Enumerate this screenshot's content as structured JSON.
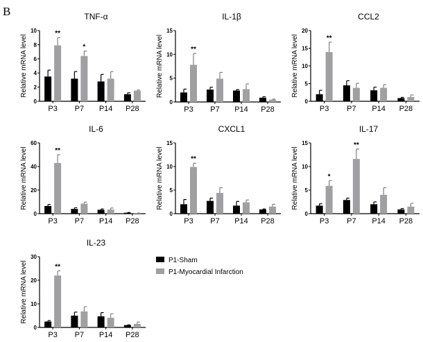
{
  "panel_label": "B",
  "legend": [
    {
      "name": "P1-Sham",
      "color": "#000000"
    },
    {
      "name": "P1-Myocardial Infarction",
      "color": "#a0a0a2"
    }
  ],
  "chart_data": [
    {
      "type": "bar",
      "title": "TNF-α",
      "ylabel": "Relative mRNA level",
      "xlabel": "",
      "categories": [
        "P3",
        "P7",
        "P14",
        "P28"
      ],
      "ylim": [
        0,
        10
      ],
      "yticks": [
        "0",
        "2",
        "4",
        "6",
        "8",
        "10"
      ],
      "series": [
        {
          "name": "P1-Sham",
          "values": [
            3.5,
            3.2,
            2.8,
            1.0
          ],
          "errors": [
            0.9,
            1.0,
            1.0,
            0.2
          ]
        },
        {
          "name": "P1-Myocardial Infarction",
          "values": [
            7.9,
            6.4,
            3.2,
            1.5
          ],
          "errors": [
            1.1,
            0.7,
            1.0,
            0.1
          ]
        }
      ],
      "significance": [
        "**",
        "*",
        "",
        ""
      ]
    },
    {
      "type": "bar",
      "title": "IL-1β",
      "ylabel": "Relative mRNA level",
      "xlabel": "",
      "categories": [
        "P3",
        "P7",
        "P14",
        "P28"
      ],
      "ylim": [
        0,
        15
      ],
      "yticks": [
        "0",
        "5",
        "10",
        "15"
      ],
      "series": [
        {
          "name": "P1-Sham",
          "values": [
            2.0,
            2.6,
            2.4,
            0.9
          ],
          "errors": [
            0.7,
            0.5,
            0.2,
            0.2
          ]
        },
        {
          "name": "P1-Myocardial Infarction",
          "values": [
            7.8,
            4.9,
            2.7,
            0.5
          ],
          "errors": [
            2.4,
            1.3,
            1.1,
            0.1
          ]
        }
      ],
      "significance": [
        "**",
        "",
        "",
        ""
      ]
    },
    {
      "type": "bar",
      "title": "CCL2",
      "ylabel": "Relative mRNA level",
      "xlabel": "",
      "categories": [
        "P3",
        "P7",
        "P14",
        "P28"
      ],
      "ylim": [
        0,
        20
      ],
      "yticks": [
        "0",
        "5",
        "10",
        "15",
        "20"
      ],
      "series": [
        {
          "name": "P1-Sham",
          "values": [
            2.0,
            4.5,
            3.1,
            0.9
          ],
          "errors": [
            1.1,
            1.3,
            0.9,
            0.2
          ]
        },
        {
          "name": "P1-Myocardial Infarction",
          "values": [
            13.9,
            3.8,
            3.8,
            1.2
          ],
          "errors": [
            2.8,
            1.3,
            0.9,
            0.6
          ]
        }
      ],
      "significance": [
        "**",
        "",
        "",
        ""
      ]
    },
    {
      "type": "bar",
      "title": "IL-6",
      "ylabel": "Relative mRNA level",
      "xlabel": "",
      "categories": [
        "P3",
        "P7",
        "P14",
        "P28"
      ],
      "ylim": [
        0,
        60
      ],
      "yticks": [
        "0",
        "20",
        "40",
        "60"
      ],
      "series": [
        {
          "name": "P1-Sham",
          "values": [
            6.5,
            4.0,
            3.3,
            0.8
          ],
          "errors": [
            1.3,
            1.0,
            0.7,
            0.2
          ]
        },
        {
          "name": "P1-Myocardial Infarction",
          "values": [
            43,
            8.5,
            3.5,
            0.4
          ],
          "errors": [
            7,
            1.3,
            1.3,
            0.2
          ]
        }
      ],
      "significance": [
        "**",
        "",
        "",
        ""
      ]
    },
    {
      "type": "bar",
      "title": "CXCL1",
      "ylabel": "Relative mRNA level",
      "xlabel": "",
      "categories": [
        "P3",
        "P7",
        "P14",
        "P28"
      ],
      "ylim": [
        0,
        15
      ],
      "yticks": [
        "0",
        "5",
        "10",
        "15"
      ],
      "series": [
        {
          "name": "P1-Sham",
          "values": [
            2.0,
            2.7,
            1.7,
            0.9
          ],
          "errors": [
            1.0,
            0.6,
            0.9,
            0.1
          ]
        },
        {
          "name": "P1-Myocardial Infarction",
          "values": [
            9.9,
            4.4,
            2.4,
            1.5
          ],
          "errors": [
            0.8,
            1.1,
            0.5,
            0.5
          ]
        }
      ],
      "significance": [
        "**",
        "",
        "",
        ""
      ]
    },
    {
      "type": "bar",
      "title": "IL-17",
      "ylabel": "Relative mRNA level",
      "xlabel": "",
      "categories": [
        "P3",
        "P7",
        "P14",
        "P28"
      ],
      "ylim": [
        0,
        15
      ],
      "yticks": [
        "0",
        "5",
        "10",
        "15"
      ],
      "series": [
        {
          "name": "P1-Sham",
          "values": [
            1.7,
            2.9,
            2.0,
            0.9
          ],
          "errors": [
            0.4,
            0.4,
            0.5,
            0.2
          ]
        },
        {
          "name": "P1-Myocardial Infarction",
          "values": [
            5.9,
            11.6,
            4.0,
            1.5
          ],
          "errors": [
            1.1,
            2.1,
            1.5,
            0.7
          ]
        }
      ],
      "significance": [
        "*",
        "**",
        "",
        ""
      ]
    },
    {
      "type": "bar",
      "title": "IL-23",
      "ylabel": "Relative mRNA level",
      "xlabel": "",
      "categories": [
        "P3",
        "P7",
        "P14",
        "P28"
      ],
      "ylim": [
        0,
        30
      ],
      "yticks": [
        "0",
        "10",
        "20",
        "30"
      ],
      "series": [
        {
          "name": "P1-Sham",
          "values": [
            2.5,
            5.0,
            4.7,
            1.0
          ],
          "errors": [
            0.4,
            1.5,
            1.6,
            0.1
          ]
        },
        {
          "name": "P1-Myocardial Infarction",
          "values": [
            22,
            6.8,
            4.1,
            1.5
          ],
          "errors": [
            2,
            2.0,
            1.7,
            0.8
          ]
        }
      ],
      "significance": [
        "**",
        "",
        "",
        ""
      ]
    }
  ]
}
